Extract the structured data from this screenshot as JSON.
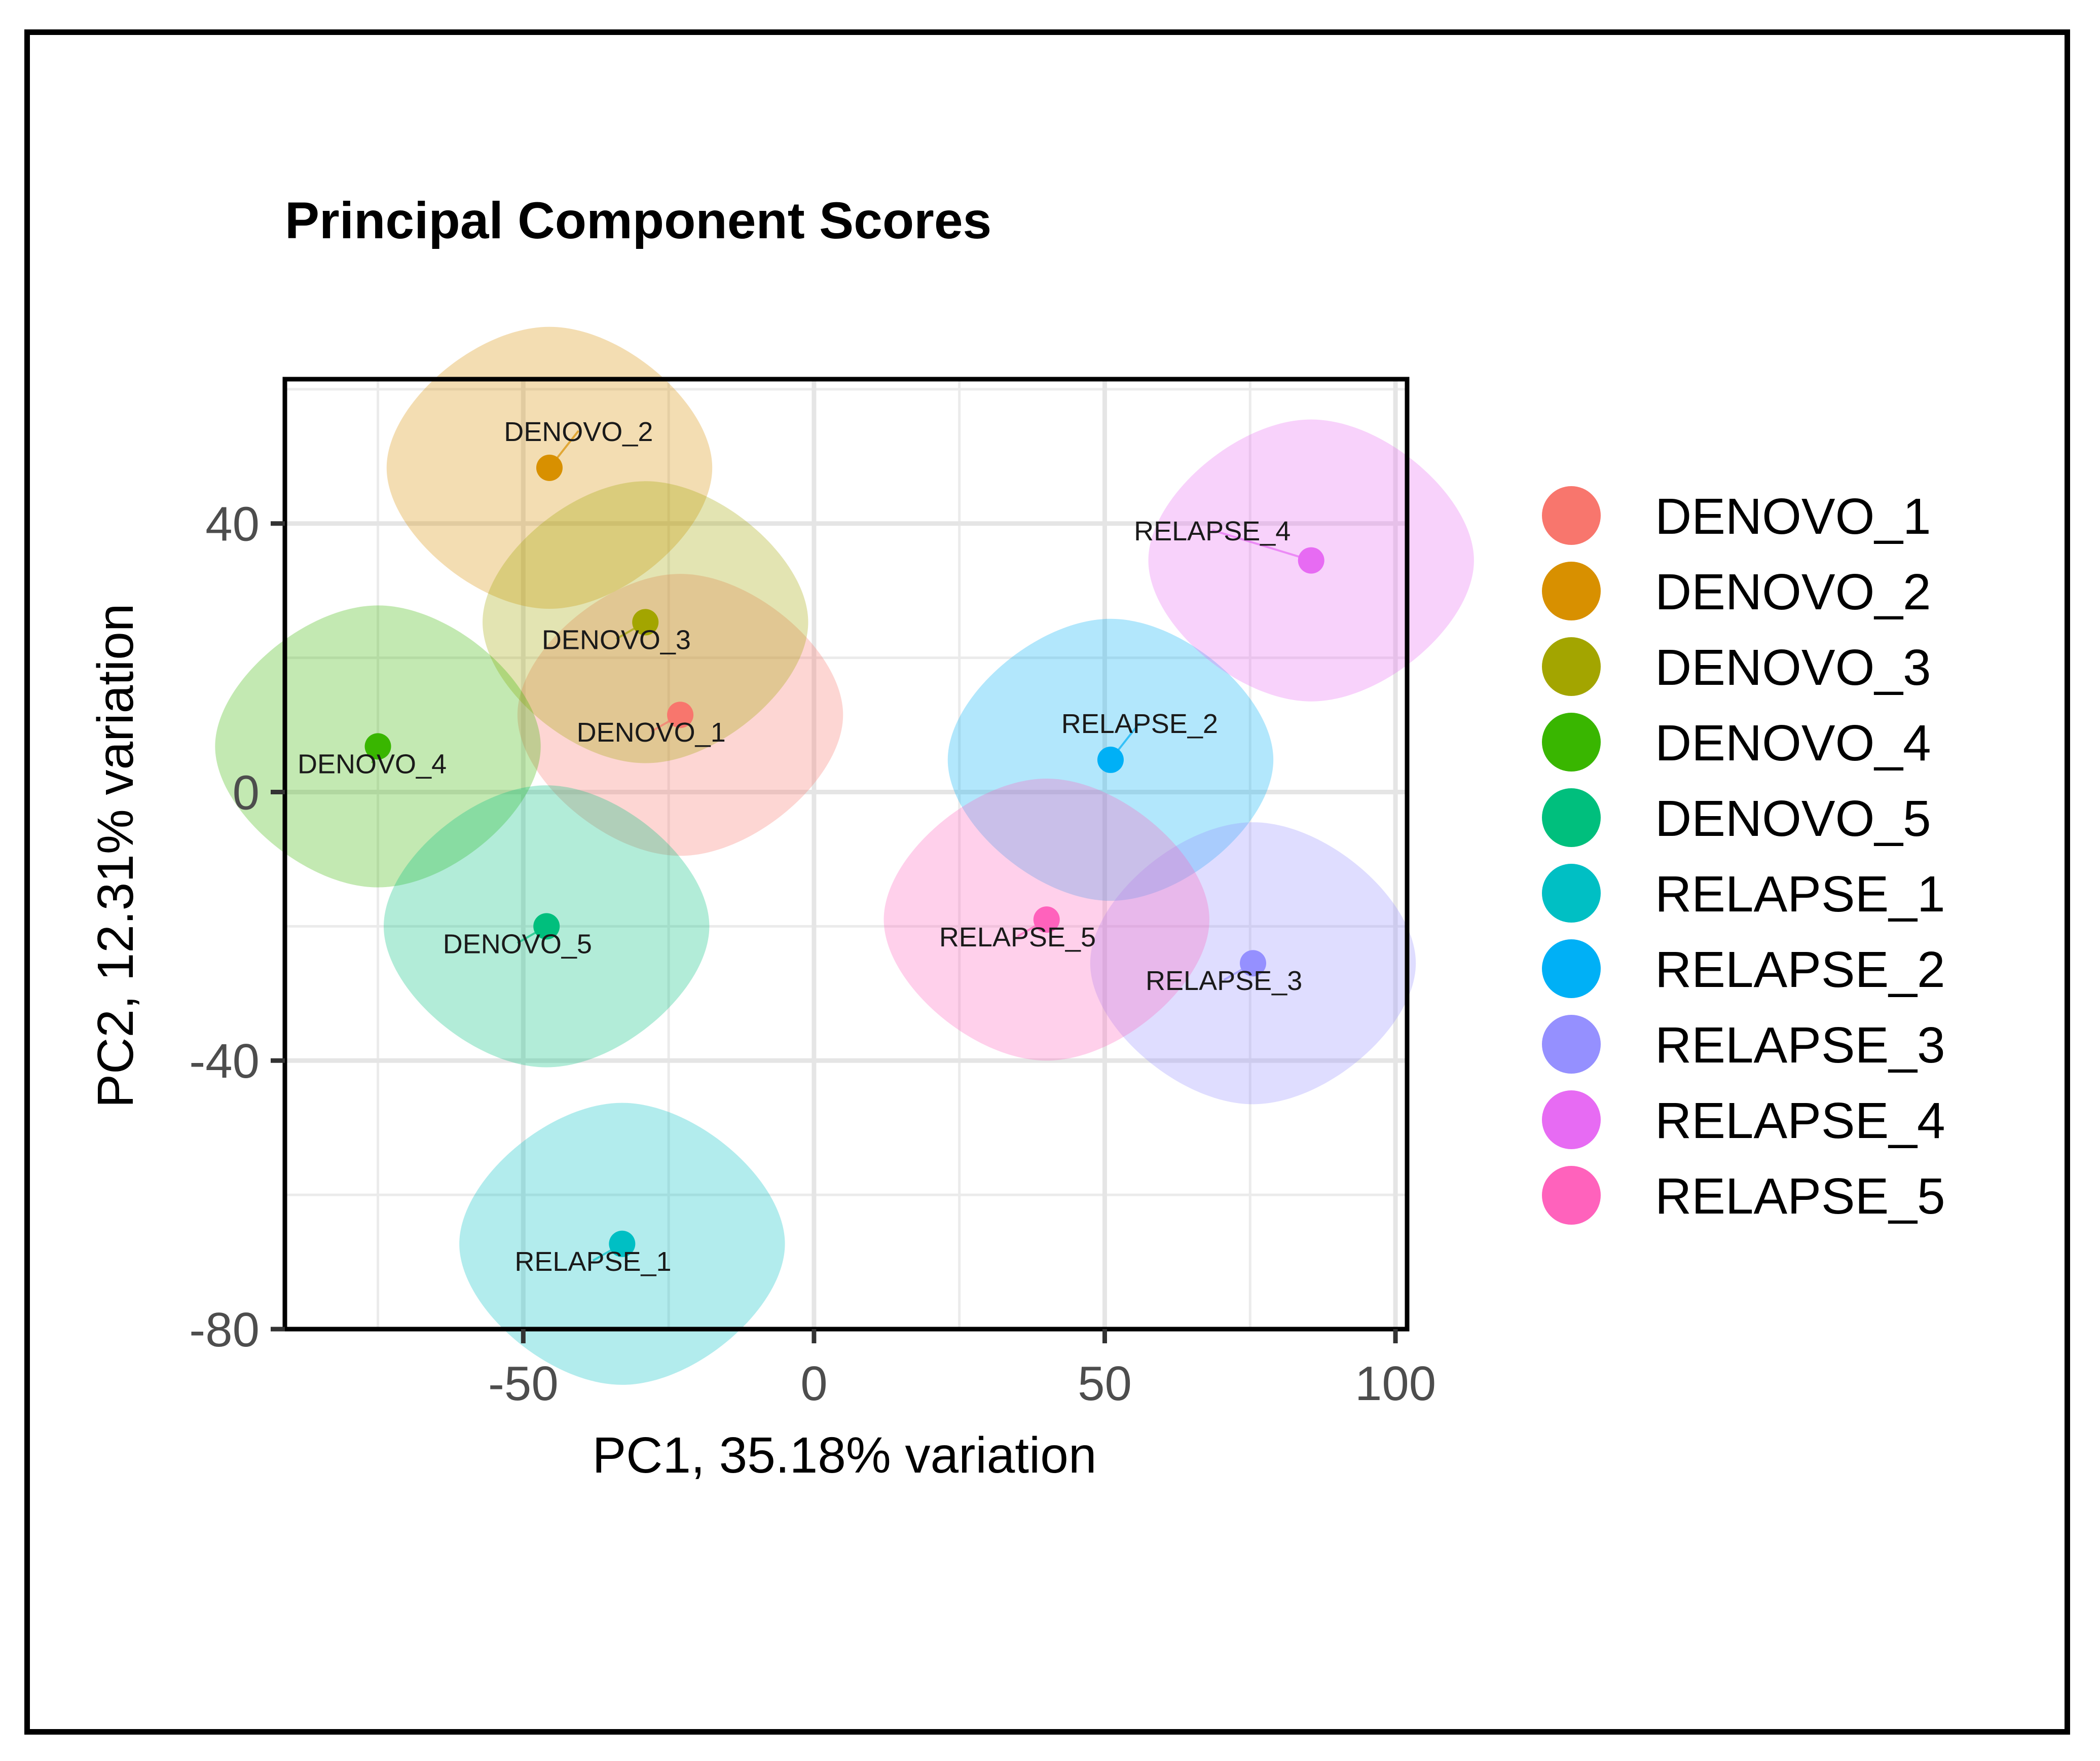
{
  "chart_data": {
    "type": "scatter",
    "title": "Principal Component Scores",
    "xlabel": "PC1, 35.18% variation",
    "ylabel": "PC2, 12.31% variation",
    "xlim": [
      -91,
      102
    ],
    "ylim": [
      -80,
      61.5
    ],
    "xticks": [
      -50,
      0,
      50,
      100
    ],
    "yticks": [
      40,
      0,
      -40,
      -80
    ],
    "xtick_labels": [
      "-50",
      "0",
      "50",
      "100"
    ],
    "ytick_labels": [
      "40",
      "0",
      "-40",
      "-80"
    ],
    "grid": true,
    "legend_position": "right",
    "points": [
      {
        "label": "DENOVO_1",
        "x": -23,
        "y": 11.5,
        "color": "#F8766D",
        "label_dx": -5,
        "label_dy": -4
      },
      {
        "label": "DENOVO_2",
        "x": -45.5,
        "y": 48.3,
        "color": "#D89000",
        "label_dx": 5,
        "label_dy": 4
      },
      {
        "label": "DENOVO_3",
        "x": -29,
        "y": 25.3,
        "color": "#A3A500",
        "label_dx": -5,
        "label_dy": -4
      },
      {
        "label": "DENOVO_4",
        "x": -75,
        "y": 6.8,
        "color": "#39B600",
        "label_dx": -1,
        "label_dy": -4
      },
      {
        "label": "DENOVO_5",
        "x": -46,
        "y": -20,
        "color": "#00BF7D",
        "label_dx": -5,
        "label_dy": -4
      },
      {
        "label": "RELAPSE_1",
        "x": -33,
        "y": -67.3,
        "color": "#00BFC4",
        "label_dx": -5,
        "label_dy": -4
      },
      {
        "label": "RELAPSE_2",
        "x": 51,
        "y": 4.8,
        "color": "#00B0F6",
        "label_dx": 5,
        "label_dy": 4
      },
      {
        "label": "RELAPSE_3",
        "x": 75.5,
        "y": -25.5,
        "color": "#9590FF",
        "label_dx": -5,
        "label_dy": -4
      },
      {
        "label": "RELAPSE_4",
        "x": 85.5,
        "y": 34.5,
        "color": "#E76BF3",
        "label_dx": -17,
        "label_dy": 3
      },
      {
        "label": "RELAPSE_5",
        "x": 40,
        "y": -19,
        "color": "#FF62BC",
        "label_dx": -5,
        "label_dy": -4
      }
    ],
    "ellipse_half_width": 28,
    "ellipse_half_height": 21
  }
}
